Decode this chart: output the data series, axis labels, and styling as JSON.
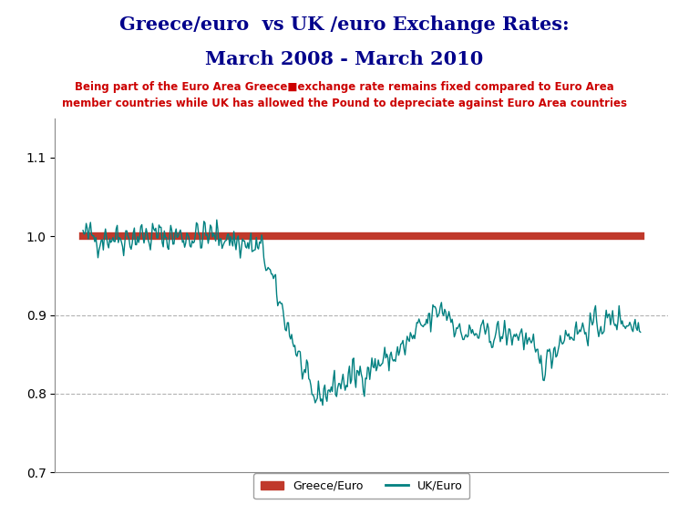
{
  "title_line1": "Greece/euro  vs UK /euro Exchange Rates:",
  "title_line2": "March 2008 - March 2010",
  "subtitle": "Being part of the Euro Area Greece■exchange rate remains fixed compared to Euro Area\nmember countries while UK has allowed the Pound to depreciate against Euro Area countries",
  "title_color": "#00008B",
  "subtitle_color": "#CC0000",
  "greece_value": 1.0,
  "ylim": [
    0.7,
    1.15
  ],
  "yticks": [
    0.7,
    0.8,
    0.9,
    1.0,
    1.1
  ],
  "greece_color": "#C0392B",
  "uk_color": "#008080",
  "legend_labels": [
    "Greece/Euro",
    "UK/Euro"
  ],
  "background_color": "#FFFFFF",
  "n_points": 522,
  "grid_color": "#AAAAAA"
}
